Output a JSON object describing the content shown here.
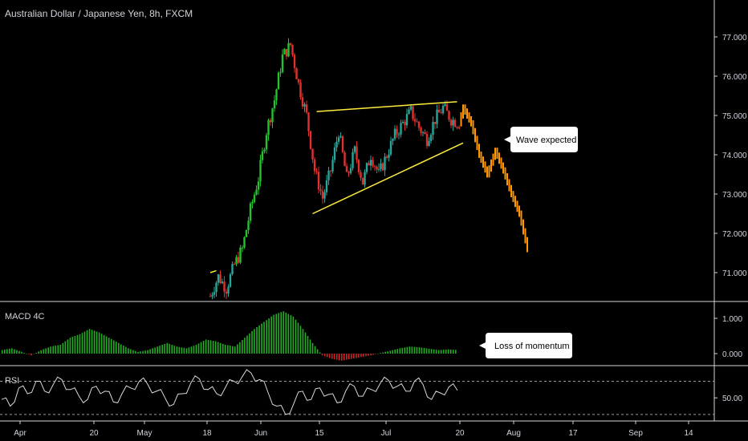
{
  "symbol_title": "Australian Dollar / Japanese Yen, 8h, FXCM",
  "colors": {
    "background": "#000000",
    "up": "#26a69a",
    "up_bright": "#22c32c",
    "down": "#e0302d",
    "projection": "#ff9800",
    "trendline": "#ffeb3b",
    "macd_pos": "#22b022",
    "macd_neg": "#c62828",
    "rsi_line": "#d8d8d8",
    "grid_text": "#d1d4dc",
    "separator": "#ffffff"
  },
  "price_axis": {
    "ticks": [
      "77.000",
      "76.000",
      "75.000",
      "74.000",
      "73.000",
      "72.000",
      "71.000"
    ],
    "values": [
      77,
      76,
      75,
      74,
      73,
      72,
      71
    ]
  },
  "time_axis": {
    "labels": [
      "Apr",
      "20",
      "May",
      "18",
      "Jun",
      "15",
      "Jul",
      "20",
      "Aug",
      "17",
      "Sep",
      "14"
    ]
  },
  "macd_panel": {
    "title": "MACD 4C",
    "ticks": [
      "1.000",
      "0.000"
    ]
  },
  "rsi_panel": {
    "title": "RSI",
    "ticks": [
      "50.00"
    ]
  },
  "annotations": {
    "wave": "Wave expected",
    "momentum": "Loss of momentum"
  },
  "chart_data": {
    "type": "candlestick",
    "title": "Australian Dollar / Japanese Yen, 8h, FXCM",
    "ylim": [
      70.3,
      77.8
    ],
    "x": [
      "Apr",
      "20",
      "May",
      "18",
      "Jun",
      "15",
      "Jul",
      "20",
      "Aug",
      "17",
      "Sep",
      "14"
    ],
    "price_path": [
      [
        0,
        70.4
      ],
      [
        2,
        70.9
      ],
      [
        4,
        70.6
      ],
      [
        6,
        71.2
      ],
      [
        8,
        71.6
      ],
      [
        10,
        72.6
      ],
      [
        12,
        73.4
      ],
      [
        14,
        74.6
      ],
      [
        16,
        75.4
      ],
      [
        18,
        76.5
      ],
      [
        20,
        76.8
      ],
      [
        22,
        75.8
      ],
      [
        24,
        75.0
      ],
      [
        26,
        73.6
      ],
      [
        28,
        72.9
      ],
      [
        30,
        73.6
      ],
      [
        32,
        74.6
      ],
      [
        34,
        73.4
      ],
      [
        36,
        74.1
      ],
      [
        38,
        73.3
      ],
      [
        40,
        74.0
      ],
      [
        42,
        73.5
      ],
      [
        44,
        74.0
      ],
      [
        46,
        74.5
      ],
      [
        48,
        74.8
      ],
      [
        50,
        75.1
      ],
      [
        52,
        74.7
      ],
      [
        54,
        74.4
      ],
      [
        56,
        74.9
      ],
      [
        58,
        75.2
      ],
      [
        60,
        74.9
      ],
      [
        62,
        74.8
      ]
    ],
    "projection_path": [
      [
        62,
        74.8
      ],
      [
        63,
        75.2
      ],
      [
        65,
        74.8
      ],
      [
        67,
        74.0
      ],
      [
        69,
        73.5
      ],
      [
        71,
        74.1
      ],
      [
        73,
        73.6
      ],
      [
        75,
        73.0
      ],
      [
        77,
        72.5
      ],
      [
        79,
        71.6
      ]
    ],
    "trendlines": [
      {
        "from": [
          0.0,
          71.0
        ],
        "to": [
          1.5,
          71.05
        ]
      },
      {
        "from": [
          26.5,
          75.1
        ],
        "to": [
          61.5,
          75.35
        ]
      },
      {
        "from": [
          25.5,
          72.5
        ],
        "to": [
          63,
          74.3
        ]
      }
    ],
    "macd_histogram": [
      0.1,
      0.15,
      0.05,
      -0.05,
      0.1,
      0.2,
      0.25,
      0.45,
      0.55,
      0.7,
      0.6,
      0.45,
      0.3,
      0.15,
      0.05,
      0.1,
      0.2,
      0.3,
      0.2,
      0.15,
      0.25,
      0.4,
      0.35,
      0.25,
      0.2,
      0.45,
      0.7,
      0.9,
      1.1,
      1.2,
      1.05,
      0.7,
      0.3,
      -0.05,
      -0.15,
      -0.2,
      -0.15,
      -0.1,
      -0.05,
      0.02,
      0.08,
      0.15,
      0.2,
      0.18,
      0.14,
      0.1,
      0.12,
      0.1
    ],
    "macd_ylim": [
      -0.3,
      1.3
    ],
    "rsi_values": [
      48,
      40,
      62,
      55,
      70,
      58,
      66,
      72,
      60,
      52,
      48,
      64,
      58,
      45,
      55,
      62,
      70,
      66,
      58,
      50,
      42,
      55,
      68,
      73,
      60,
      55,
      62,
      70,
      76,
      80,
      72,
      56,
      40,
      30,
      44,
      58,
      48,
      62,
      54,
      44,
      58,
      64,
      52,
      60,
      67,
      71,
      64,
      58,
      70,
      66,
      48,
      56,
      63,
      59
    ],
    "rsi_ylim": [
      25,
      85
    ],
    "rsi_bands": [
      30,
      70
    ]
  }
}
